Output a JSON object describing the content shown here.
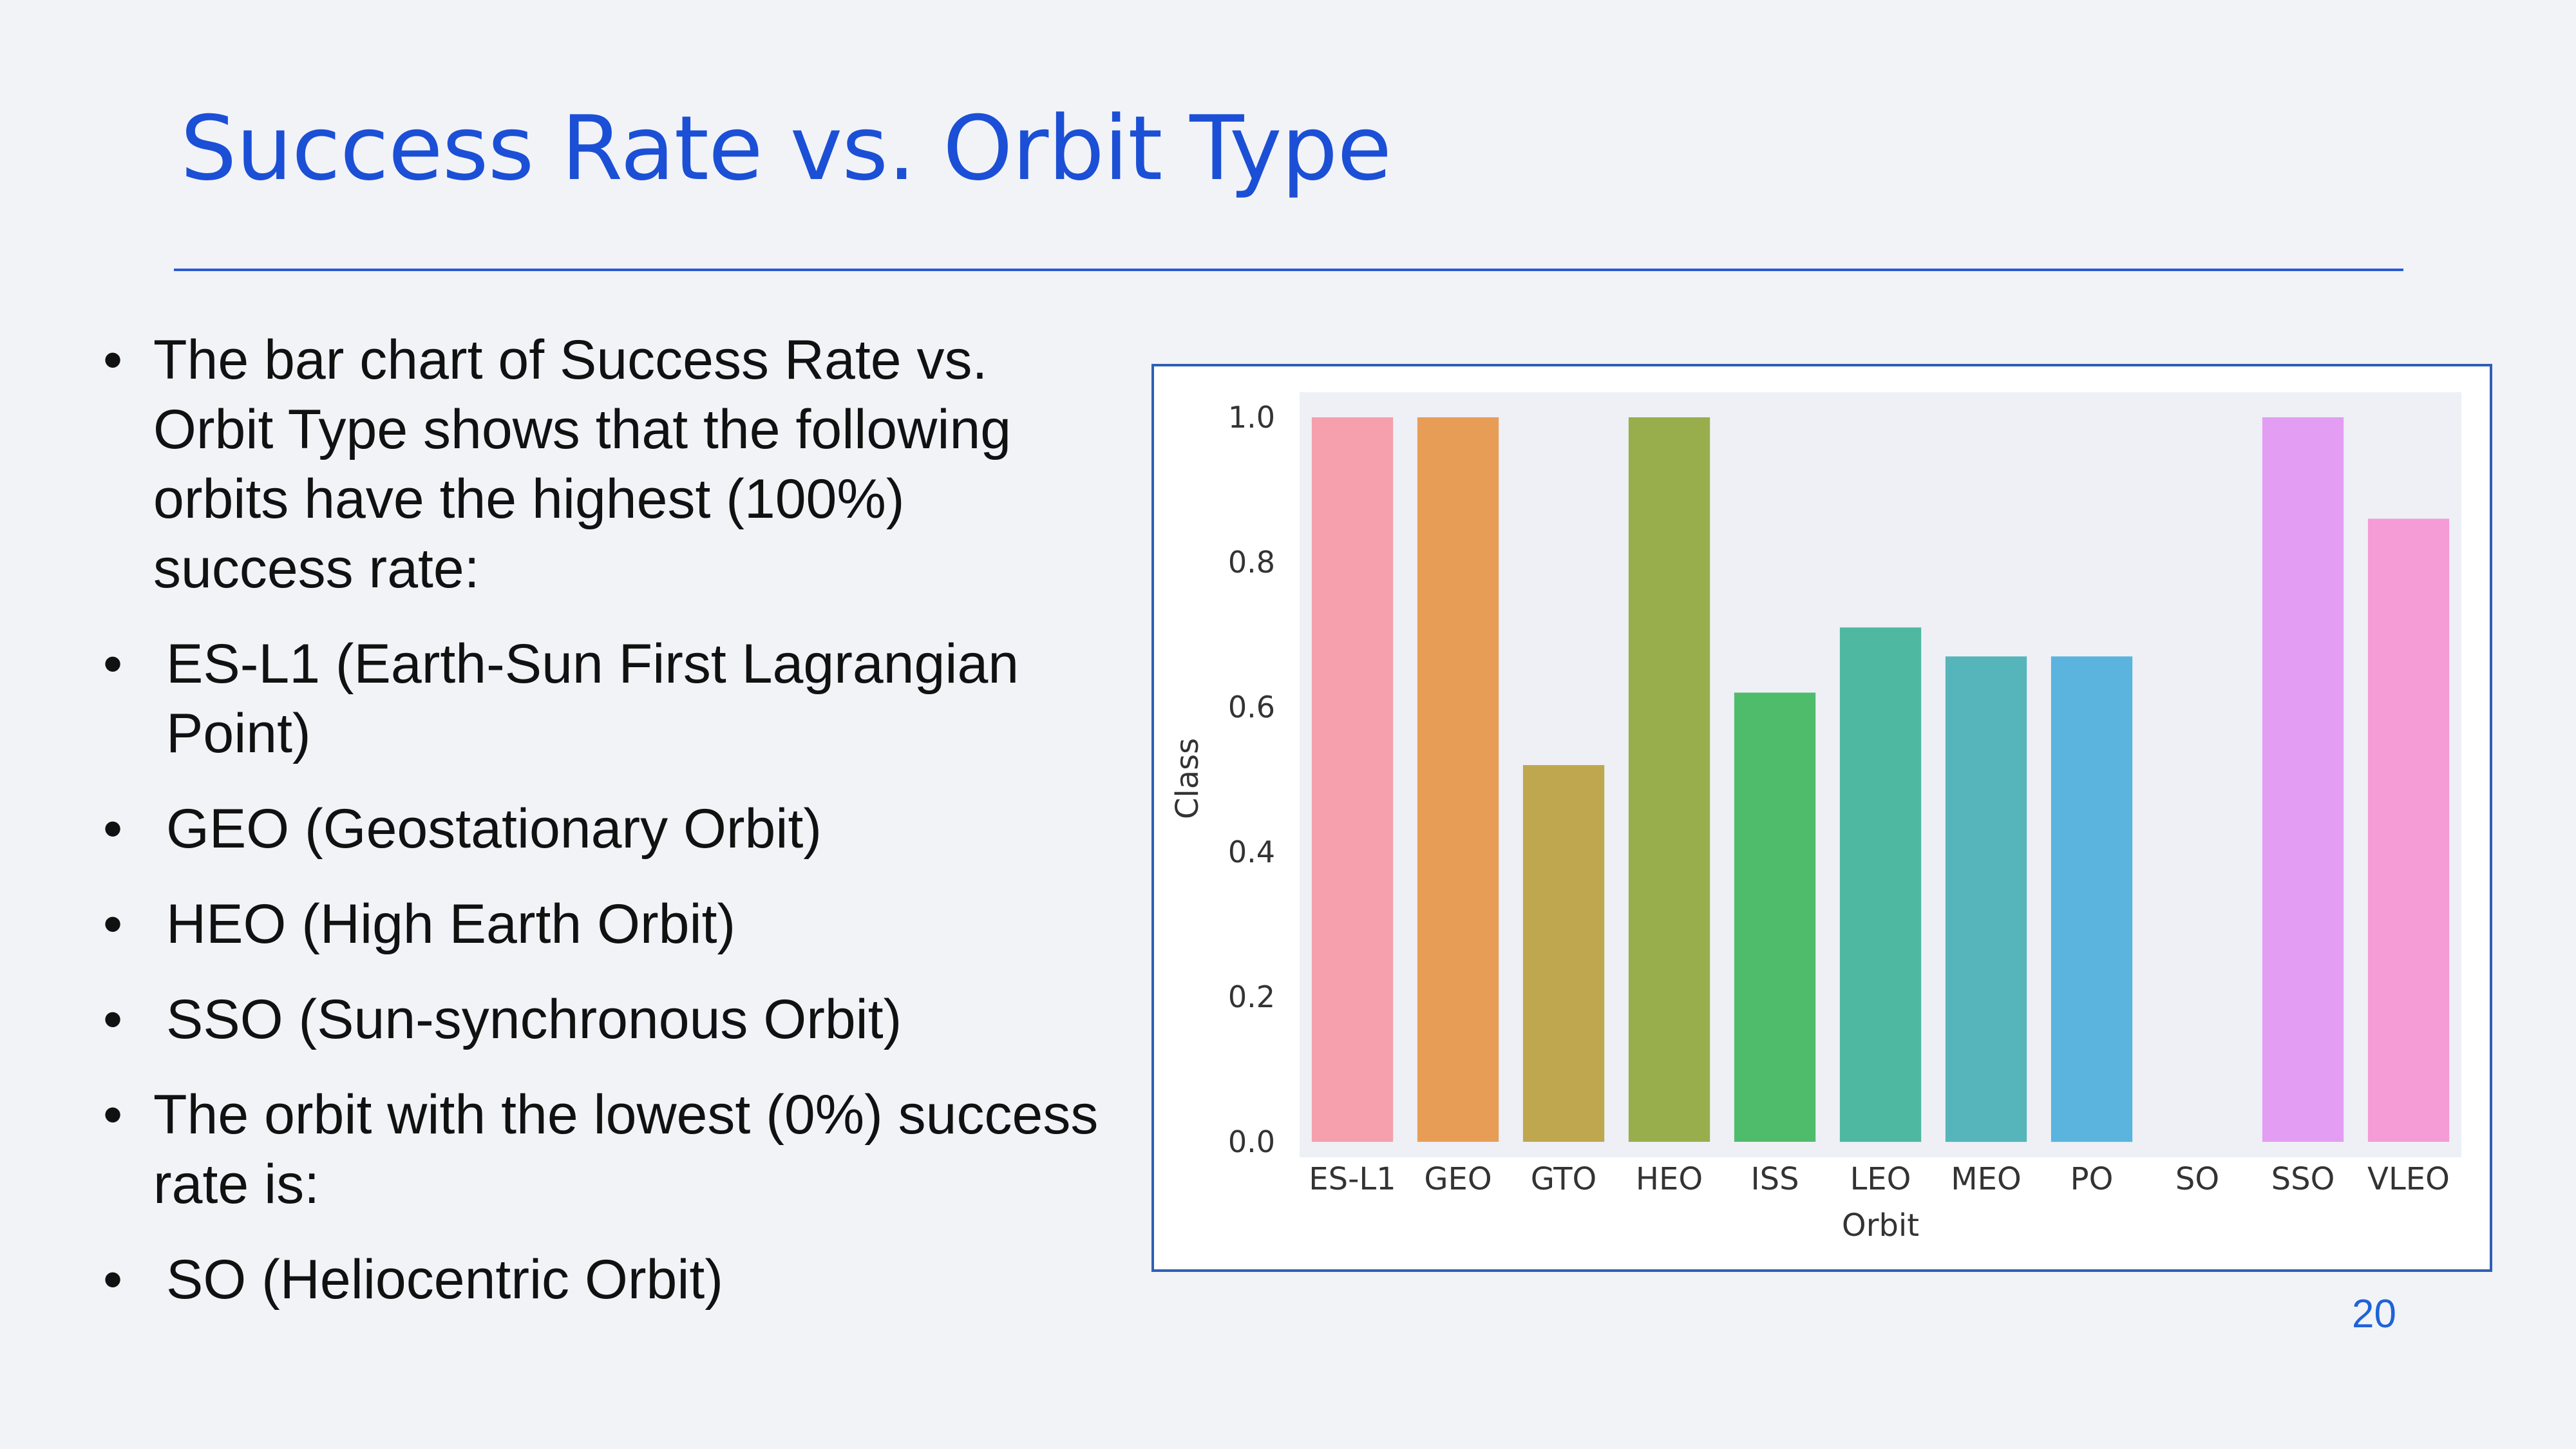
{
  "slide": {
    "title": "Success Rate vs. Orbit Type",
    "page_number": "20",
    "accent_color": "#1b4fd6"
  },
  "bullets": [
    {
      "text": "The bar chart of Success Rate vs. Orbit Type shows that the following orbits have the highest (100%) success rate:",
      "indent": false
    },
    {
      "text": "ES-L1 (Earth-Sun First Lagrangian Point)",
      "indent": true
    },
    {
      "text": "GEO (Geostationary Orbit)",
      "indent": true
    },
    {
      "text": "HEO (High Earth Orbit)",
      "indent": true
    },
    {
      "text": "SSO (Sun-synchronous Orbit)",
      "indent": true
    },
    {
      "text": "The orbit with the lowest (0%) success rate is:",
      "indent": false
    },
    {
      "text": "SO (Heliocentric Orbit)",
      "indent": true
    }
  ],
  "chart_data": {
    "type": "bar",
    "categories": [
      "ES-L1",
      "GEO",
      "GTO",
      "HEO",
      "ISS",
      "LEO",
      "MEO",
      "PO",
      "SO",
      "SSO",
      "VLEO"
    ],
    "values": [
      1.0,
      1.0,
      0.52,
      1.0,
      0.62,
      0.71,
      0.67,
      0.67,
      0.0,
      1.0,
      0.86
    ],
    "colors": [
      "#f5a0ac",
      "#e89d57",
      "#bfa750",
      "#98ae4c",
      "#4fbc6c",
      "#4fb8a0",
      "#55b5ba",
      "#5ab4dd",
      "#a5b0f0",
      "#e39df3",
      "#f59bd6"
    ],
    "yticks": [
      "0.0",
      "0.2",
      "0.4",
      "0.6",
      "0.8",
      "1.0"
    ],
    "ylim": [
      0,
      1.05
    ],
    "xlabel": "Orbit",
    "ylabel": "Class",
    "grid": false,
    "plot_background": "#eef0f6"
  }
}
